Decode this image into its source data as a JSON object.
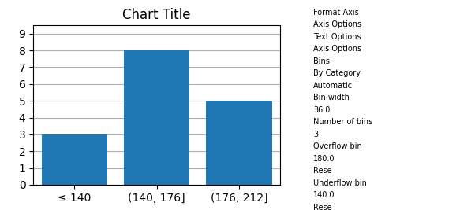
{
  "chart_data": {
    "type": "bar",
    "title": "Chart Title",
    "categories": [
      "≤ 140",
      "(140, 176]",
      "(176, 212]"
    ],
    "values": [
      3,
      8,
      5
    ],
    "ylim": [
      0,
      9.5
    ],
    "yticks": [
      0,
      1,
      2,
      3,
      4,
      5,
      6,
      7,
      8,
      9
    ],
    "grid": true,
    "annotations": [
      "Format Axis",
      "Axis Options",
      "Text Options",
      "Axis Options",
      "Bins",
      "By Category",
      "Automatic",
      "Bin width",
      "36.0",
      "Number of bins",
      "3",
      "Overflow bin",
      "180.0",
      "Rese",
      "Underflow bin",
      "140.0",
      "Rese"
    ]
  }
}
